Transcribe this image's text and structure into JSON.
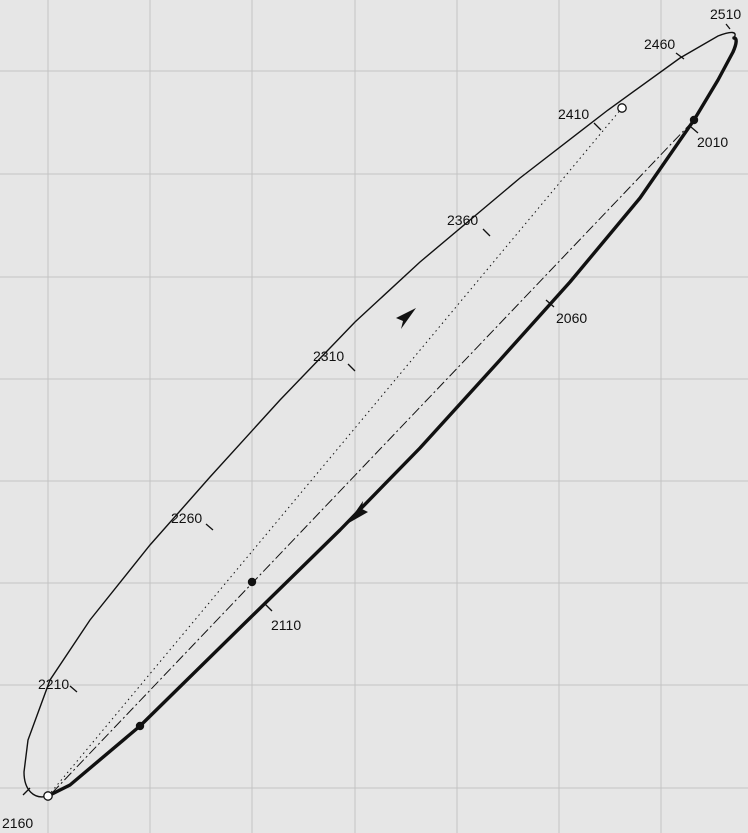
{
  "diagram": {
    "year_labels": [
      {
        "id": "2010",
        "text": "2010"
      },
      {
        "id": "2060",
        "text": "2060"
      },
      {
        "id": "2110",
        "text": "2110"
      },
      {
        "id": "2160",
        "text": "2160"
      },
      {
        "id": "2210",
        "text": "2210"
      },
      {
        "id": "2260",
        "text": "2260"
      },
      {
        "id": "2310",
        "text": "2310"
      },
      {
        "id": "2360",
        "text": "2360"
      },
      {
        "id": "2410",
        "text": "2410"
      },
      {
        "id": "2460",
        "text": "2460"
      },
      {
        "id": "2510",
        "text": "2510"
      }
    ],
    "colors": {
      "background": "#e6e6e6",
      "grid": "#c4c4c4",
      "ink": "#111111"
    }
  }
}
